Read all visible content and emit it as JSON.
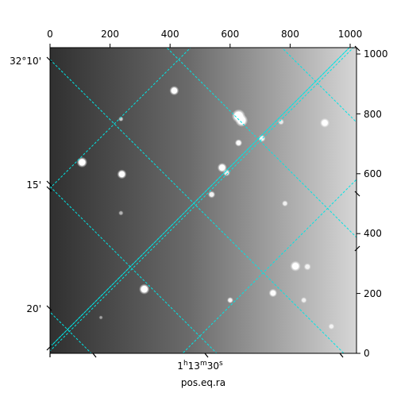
{
  "image": {
    "description": "grayscale astronomical image with bright stars; background brightens from left to right",
    "colors": {
      "frame": "#000000",
      "grid": "#00e5e5",
      "background_dark": "#303030",
      "background_light": "#d6d6d6",
      "star": "#ffffff"
    }
  },
  "axes": {
    "pixel_x": {
      "ticks": [
        0,
        200,
        400,
        600,
        800,
        1000
      ],
      "tick_labels": [
        "0",
        "200",
        "400",
        "600",
        "800",
        "1000"
      ]
    },
    "pixel_y": {
      "ticks": [
        0,
        200,
        400,
        600,
        800,
        1000
      ],
      "tick_labels": [
        "0",
        "200",
        "400",
        "600",
        "800",
        "1000"
      ]
    },
    "dec": {
      "tick_labels": [
        "32°10'",
        "15'",
        "20'"
      ]
    },
    "ra": {
      "tick_label_main": "1",
      "tick_label_h": "h",
      "tick_label_mid": "13",
      "tick_label_m": "m",
      "tick_label_end": "30",
      "tick_label_s": "s",
      "axis_label": "pos.eq.ra"
    }
  },
  "stars": [
    {
      "x": 107,
      "y": 640,
      "r": 10,
      "brightness": 0.95
    },
    {
      "x": 240,
      "y": 600,
      "r": 9,
      "brightness": 0.9
    },
    {
      "x": 415,
      "y": 880,
      "r": 9,
      "brightness": 0.9
    },
    {
      "x": 630,
      "y": 795,
      "r": 13,
      "brightness": 1.0
    },
    {
      "x": 640,
      "y": 780,
      "r": 12,
      "brightness": 1.0
    },
    {
      "x": 575,
      "y": 622,
      "r": 9,
      "brightness": 0.95
    },
    {
      "x": 590,
      "y": 605,
      "r": 7,
      "brightness": 0.6
    },
    {
      "x": 630,
      "y": 705,
      "r": 7,
      "brightness": 0.85
    },
    {
      "x": 708,
      "y": 720,
      "r": 7,
      "brightness": 0.7
    },
    {
      "x": 918,
      "y": 772,
      "r": 9,
      "brightness": 0.9
    },
    {
      "x": 772,
      "y": 775,
      "r": 6,
      "brightness": 0.5
    },
    {
      "x": 540,
      "y": 532,
      "r": 7,
      "brightness": 0.7
    },
    {
      "x": 785,
      "y": 502,
      "r": 6,
      "brightness": 0.6
    },
    {
      "x": 820,
      "y": 292,
      "r": 10,
      "brightness": 0.9
    },
    {
      "x": 860,
      "y": 290,
      "r": 7,
      "brightness": 0.6
    },
    {
      "x": 315,
      "y": 215,
      "r": 10,
      "brightness": 0.95
    },
    {
      "x": 745,
      "y": 202,
      "r": 8,
      "brightness": 0.85
    },
    {
      "x": 602,
      "y": 178,
      "r": 6,
      "brightness": 0.7
    },
    {
      "x": 848,
      "y": 178,
      "r": 6,
      "brightness": 0.55
    },
    {
      "x": 940,
      "y": 90,
      "r": 6,
      "brightness": 0.55
    },
    {
      "x": 237,
      "y": 785,
      "r": 5,
      "brightness": 0.45
    },
    {
      "x": 237,
      "y": 470,
      "r": 5,
      "brightness": 0.35
    },
    {
      "x": 170,
      "y": 120,
      "r": 4,
      "brightness": 0.3
    }
  ]
}
